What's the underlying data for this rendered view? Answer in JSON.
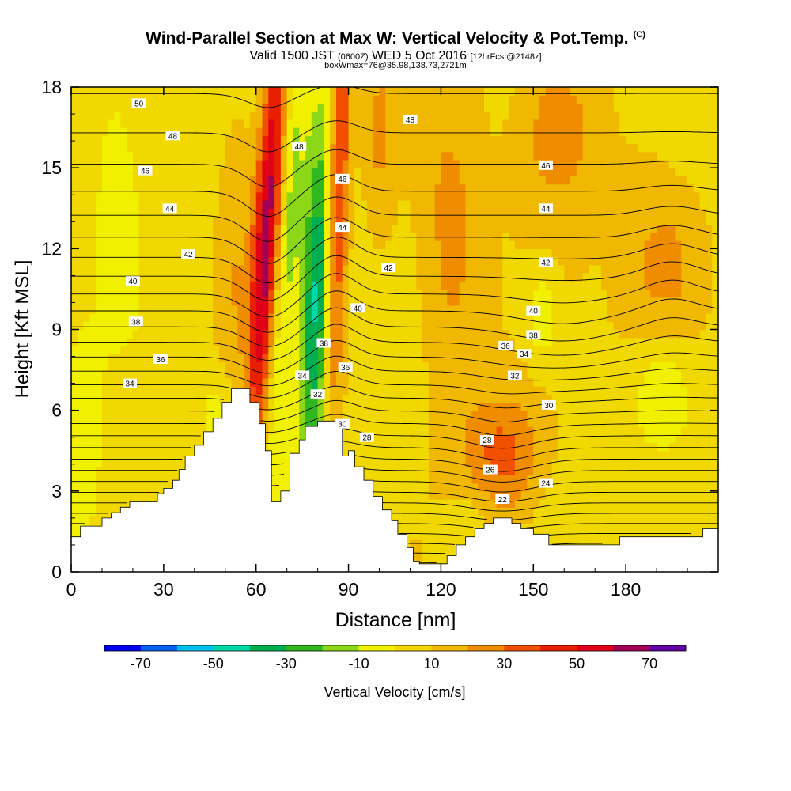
{
  "header": {
    "title": "Wind-Parallel Section at Max W: Vertical Velocity & Pot.Temp.",
    "copyright": "(C)",
    "valid_main": "Valid 1500 JST",
    "valid_z": "(0600Z)",
    "valid_date": "WED 5 Oct 2016",
    "valid_fcst": "[12hrFcst@2148z]",
    "boxwmax": "boxWmax=76@35.98,138.73,2721m"
  },
  "chart_data": {
    "type": "heatmap",
    "title": "Wind-Parallel Section at Max W: Vertical Velocity & Pot.Temp.",
    "xlabel": "Distance [nm]",
    "ylabel": "Height [Kft MSL]",
    "xlim": [
      0,
      210
    ],
    "ylim": [
      0,
      18
    ],
    "xticks": [
      0,
      30,
      60,
      90,
      120,
      150,
      180
    ],
    "yticks": [
      0,
      3,
      6,
      9,
      12,
      15,
      18
    ],
    "terrain": {
      "x": [
        0,
        3,
        10,
        13,
        16,
        19,
        22,
        25,
        28,
        30,
        33,
        35,
        37,
        40,
        43,
        46,
        49,
        52,
        55,
        58,
        61,
        63,
        65,
        68,
        71,
        74,
        76,
        80,
        84,
        86,
        88,
        90,
        92,
        95,
        98,
        101,
        104,
        106,
        109,
        111,
        113,
        116,
        119,
        122,
        125,
        128,
        131,
        134,
        137,
        140,
        143,
        146,
        150,
        155,
        160,
        165,
        172,
        178,
        185,
        192,
        200,
        205,
        210
      ],
      "height": [
        1.3,
        1.7,
        2.0,
        2.2,
        2.4,
        2.6,
        2.6,
        2.6,
        2.9,
        3.1,
        3.4,
        3.8,
        4.3,
        4.7,
        5.2,
        5.7,
        6.3,
        6.8,
        6.8,
        6.3,
        5.5,
        4.5,
        2.6,
        3.0,
        4.4,
        4.9,
        5.4,
        5.6,
        5.6,
        5.4,
        4.3,
        4.5,
        3.9,
        3.4,
        2.8,
        2.3,
        1.9,
        1.4,
        0.9,
        0.4,
        0.3,
        0.3,
        0.3,
        0.6,
        1.0,
        1.3,
        1.6,
        1.8,
        2.0,
        2.0,
        1.8,
        1.6,
        1.4,
        1.0,
        1.0,
        1.0,
        1.0,
        1.3,
        1.3,
        1.3,
        1.3,
        1.6,
        1.6
      ]
    },
    "w_features": [
      {
        "x": 64,
        "y": 13,
        "sx": 3.2,
        "sy": 6,
        "w": 62,
        "tilt": 0.55
      },
      {
        "x": 86,
        "y": 13,
        "sx": 2.8,
        "sy": 6,
        "w": 60,
        "tilt": 0.25
      },
      {
        "x": 81,
        "y": 10.5,
        "sx": 4.5,
        "sy": 5,
        "w": -58,
        "tilt": 0.4
      },
      {
        "x": 69,
        "y": 12,
        "sx": 3,
        "sy": 6,
        "w": -25,
        "tilt": 0.5
      },
      {
        "x": 140,
        "y": 4.2,
        "sx": 9,
        "sy": 1.7,
        "w": 28
      },
      {
        "x": 158,
        "y": 16.5,
        "sx": 10,
        "sy": 2.4,
        "w": 22
      },
      {
        "x": 193,
        "y": 10.5,
        "sx": 10,
        "sy": 3.2,
        "w": 22
      },
      {
        "x": 123,
        "y": 12,
        "sx": 8,
        "sy": 4.5,
        "w": 18
      },
      {
        "x": 52,
        "y": 11,
        "sx": 4,
        "sy": 5,
        "w": 12,
        "tilt": 0.4
      },
      {
        "x": 192,
        "y": 6.8,
        "sx": 7,
        "sy": 1.8,
        "w": -22
      },
      {
        "x": 153,
        "y": 9.5,
        "sx": 3.5,
        "sy": 1.3,
        "w": -16
      },
      {
        "x": 15,
        "y": 15,
        "sx": 6,
        "sy": 4,
        "w": -10
      },
      {
        "x": 3,
        "y": 4.5,
        "sx": 5,
        "sy": 3,
        "w": -14
      },
      {
        "x": 48,
        "y": 5.6,
        "sx": 4,
        "sy": 1.5,
        "w": -16
      },
      {
        "x": 100,
        "y": 16,
        "sx": 4,
        "sy": 3,
        "w": 14
      },
      {
        "x": 200,
        "y": 17,
        "sx": 9,
        "sy": 2,
        "w": -10
      },
      {
        "x": 130,
        "y": 1.8,
        "sx": 6,
        "sy": 1.2,
        "w": -8
      }
    ],
    "w_scale": {
      "label": "Vertical Velocity [cm/s]",
      "bounds": [
        -80,
        -70,
        -60,
        -50,
        -40,
        -30,
        -20,
        -10,
        0,
        10,
        20,
        30,
        40,
        50,
        60,
        70,
        80
      ],
      "tick_values": [
        -70,
        -50,
        -30,
        -10,
        10,
        30,
        50,
        70
      ],
      "tick_labels": [
        "-70",
        "-50",
        "-30",
        "-10",
        "10",
        "30",
        "50",
        "70"
      ],
      "colors": [
        "#0000f0",
        "#0060f0",
        "#00c0f0",
        "#00d8a8",
        "#00b050",
        "#30b820",
        "#8cd818",
        "#f0f000",
        "#f0d800",
        "#f0b800",
        "#f08c00",
        "#f05000",
        "#e82000",
        "#e00018",
        "#a00058",
        "#6000a0"
      ]
    },
    "theta_contours": {
      "interval": 1,
      "min": 20,
      "max": 51,
      "labels": [
        {
          "text": "50",
          "x": 22,
          "y": 17.4
        },
        {
          "text": "48",
          "x": 33,
          "y": 16.2
        },
        {
          "text": "48",
          "x": 74,
          "y": 15.8
        },
        {
          "text": "48",
          "x": 110,
          "y": 16.8
        },
        {
          "text": "46",
          "x": 24,
          "y": 14.9
        },
        {
          "text": "46",
          "x": 88,
          "y": 14.6
        },
        {
          "text": "46",
          "x": 154,
          "y": 15.1
        },
        {
          "text": "44",
          "x": 32,
          "y": 13.5
        },
        {
          "text": "44",
          "x": 88,
          "y": 12.8
        },
        {
          "text": "44",
          "x": 154,
          "y": 13.5
        },
        {
          "text": "42",
          "x": 38,
          "y": 11.8
        },
        {
          "text": "42",
          "x": 103,
          "y": 11.3
        },
        {
          "text": "42",
          "x": 154,
          "y": 11.5
        },
        {
          "text": "40",
          "x": 20,
          "y": 10.8
        },
        {
          "text": "40",
          "x": 93,
          "y": 9.8
        },
        {
          "text": "40",
          "x": 150,
          "y": 9.7
        },
        {
          "text": "38",
          "x": 21,
          "y": 9.3
        },
        {
          "text": "38",
          "x": 82,
          "y": 8.5
        },
        {
          "text": "38",
          "x": 150,
          "y": 8.8
        },
        {
          "text": "36",
          "x": 29,
          "y": 7.9
        },
        {
          "text": "36",
          "x": 89,
          "y": 7.6
        },
        {
          "text": "36",
          "x": 141,
          "y": 8.4
        },
        {
          "text": "34",
          "x": 19,
          "y": 7.0
        },
        {
          "text": "34",
          "x": 75,
          "y": 7.3
        },
        {
          "text": "34",
          "x": 147,
          "y": 8.1
        },
        {
          "text": "32",
          "x": 80,
          "y": 6.6
        },
        {
          "text": "32",
          "x": 144,
          "y": 7.3
        },
        {
          "text": "30",
          "x": 88,
          "y": 5.5
        },
        {
          "text": "30",
          "x": 155,
          "y": 6.2
        },
        {
          "text": "28",
          "x": 96,
          "y": 5.0
        },
        {
          "text": "28",
          "x": 135,
          "y": 4.9
        },
        {
          "text": "26",
          "x": 136,
          "y": 3.8
        },
        {
          "text": "24",
          "x": 154,
          "y": 3.3
        },
        {
          "text": "22",
          "x": 140,
          "y": 2.7
        }
      ]
    }
  }
}
